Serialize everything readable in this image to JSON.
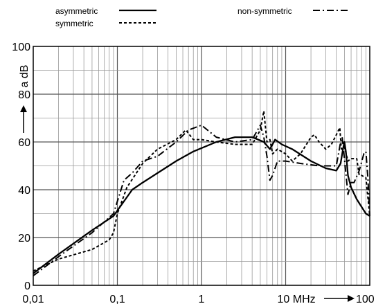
{
  "chart_data": {
    "type": "line",
    "x_scale": "log",
    "xlim": [
      0.01,
      100
    ],
    "ylim": [
      0,
      100
    ],
    "x_ticks": [
      0.01,
      0.1,
      1,
      10,
      100
    ],
    "x_tick_labels": [
      "0,01",
      "0,1",
      "1",
      "10 MHz",
      "100"
    ],
    "y_ticks": [
      0,
      20,
      40,
      60,
      80,
      100
    ],
    "y_tick_labels": [
      "0",
      "20",
      "40",
      "60",
      "80",
      "100"
    ],
    "ylabel": "a dB",
    "grid": true,
    "series": [
      {
        "name": "asymmetric",
        "style": "solid",
        "points": [
          [
            0.01,
            5
          ],
          [
            0.02,
            13
          ],
          [
            0.05,
            23
          ],
          [
            0.09,
            29
          ],
          [
            0.15,
            40
          ],
          [
            0.2,
            43
          ],
          [
            0.3,
            47
          ],
          [
            0.5,
            52
          ],
          [
            0.8,
            56
          ],
          [
            1.5,
            60
          ],
          [
            2.5,
            62
          ],
          [
            4,
            62
          ],
          [
            5.5,
            60
          ],
          [
            6.5,
            57
          ],
          [
            7.5,
            61
          ],
          [
            9,
            59
          ],
          [
            12,
            57
          ],
          [
            20,
            52
          ],
          [
            30,
            49
          ],
          [
            40,
            48
          ],
          [
            45,
            51
          ],
          [
            48,
            57
          ],
          [
            50,
            60
          ],
          [
            52,
            56
          ],
          [
            55,
            46
          ],
          [
            60,
            41
          ],
          [
            70,
            36
          ],
          [
            90,
            30
          ],
          [
            100,
            29
          ]
        ]
      },
      {
        "name": "symmetric",
        "style": "dashed",
        "points": [
          [
            0.01,
            6
          ],
          [
            0.02,
            11
          ],
          [
            0.05,
            15
          ],
          [
            0.08,
            19
          ],
          [
            0.09,
            22
          ],
          [
            0.1,
            30
          ],
          [
            0.13,
            41
          ],
          [
            0.2,
            51
          ],
          [
            0.3,
            57
          ],
          [
            0.5,
            61
          ],
          [
            0.65,
            65
          ],
          [
            0.8,
            61
          ],
          [
            1,
            61
          ],
          [
            1.5,
            60
          ],
          [
            2.5,
            59
          ],
          [
            4,
            59
          ],
          [
            5,
            65
          ],
          [
            5.5,
            73
          ],
          [
            6,
            60
          ],
          [
            6.5,
            61
          ],
          [
            7,
            55
          ],
          [
            8,
            57
          ],
          [
            10,
            55
          ],
          [
            12,
            52
          ],
          [
            15,
            55
          ],
          [
            20,
            62
          ],
          [
            22,
            63
          ],
          [
            25,
            60
          ],
          [
            30,
            57
          ],
          [
            35,
            59
          ],
          [
            40,
            63
          ],
          [
            44,
            66
          ],
          [
            46,
            57
          ],
          [
            50,
            58
          ],
          [
            55,
            52
          ],
          [
            60,
            53
          ],
          [
            65,
            53
          ],
          [
            70,
            53
          ],
          [
            75,
            46
          ],
          [
            80,
            46
          ],
          [
            90,
            45
          ],
          [
            100,
            29
          ]
        ]
      },
      {
        "name": "non-symmetric",
        "style": "dashdot",
        "points": [
          [
            0.01,
            4
          ],
          [
            0.02,
            12
          ],
          [
            0.05,
            22
          ],
          [
            0.09,
            30
          ],
          [
            0.12,
            44
          ],
          [
            0.15,
            47
          ],
          [
            0.2,
            52
          ],
          [
            0.3,
            54
          ],
          [
            0.5,
            60
          ],
          [
            0.7,
            65
          ],
          [
            1,
            67
          ],
          [
            1.5,
            62
          ],
          [
            2.5,
            60
          ],
          [
            4,
            61
          ],
          [
            5,
            67
          ],
          [
            5.5,
            62
          ],
          [
            6,
            54
          ],
          [
            6.5,
            44
          ],
          [
            7,
            46
          ],
          [
            8,
            52
          ],
          [
            10,
            52
          ],
          [
            15,
            51
          ],
          [
            25,
            50
          ],
          [
            35,
            50
          ],
          [
            40,
            50
          ],
          [
            45,
            60
          ],
          [
            47,
            62
          ],
          [
            50,
            53
          ],
          [
            55,
            38
          ],
          [
            60,
            43
          ],
          [
            65,
            43
          ],
          [
            75,
            48
          ],
          [
            85,
            55
          ],
          [
            90,
            56
          ],
          [
            95,
            45
          ],
          [
            100,
            29
          ]
        ]
      }
    ]
  }
}
